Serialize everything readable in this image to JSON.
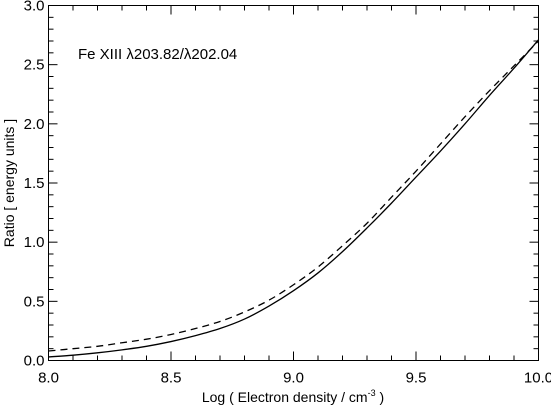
{
  "chart_data": {
    "type": "line",
    "title": "",
    "xlabel": "Log ( Electron density / cm",
    "xlabel_sup": "-3",
    "xlabel_suffix": " )",
    "ylabel": "Ratio [ energy units ]",
    "annotation": "Fe XIII λ203.82/λ202.04",
    "xlim": [
      8.0,
      10.0
    ],
    "ylim": [
      0.0,
      3.0
    ],
    "xticks": [
      "8.0",
      "8.5",
      "9.0",
      "9.5",
      "10.0"
    ],
    "yticks": [
      "0.0",
      "0.5",
      "1.0",
      "1.5",
      "2.0",
      "2.5",
      "3.0"
    ],
    "grid": false,
    "legend": "none",
    "series": [
      {
        "style": "solid",
        "color": "#000000",
        "x": [
          8.0,
          8.1,
          8.2,
          8.3,
          8.4,
          8.5,
          8.6,
          8.7,
          8.8,
          8.9,
          9.0,
          9.1,
          9.2,
          9.3,
          9.4,
          9.5,
          9.6,
          9.7,
          9.8,
          9.9,
          10.0
        ],
        "y": [
          0.03,
          0.045,
          0.065,
          0.09,
          0.12,
          0.16,
          0.21,
          0.27,
          0.35,
          0.46,
          0.59,
          0.74,
          0.92,
          1.12,
          1.33,
          1.55,
          1.77,
          2.0,
          2.24,
          2.47,
          2.71
        ]
      },
      {
        "style": "dashed",
        "color": "#000000",
        "x": [
          8.0,
          8.1,
          8.2,
          8.3,
          8.4,
          8.5,
          8.6,
          8.7,
          8.8,
          8.9,
          9.0,
          9.1,
          9.2,
          9.3,
          9.4,
          9.5,
          9.6,
          9.7,
          9.8,
          9.9,
          10.0
        ],
        "y": [
          0.08,
          0.1,
          0.12,
          0.15,
          0.18,
          0.22,
          0.27,
          0.33,
          0.41,
          0.51,
          0.64,
          0.79,
          0.97,
          1.16,
          1.38,
          1.6,
          1.83,
          2.06,
          2.28,
          2.49,
          2.7
        ]
      }
    ]
  }
}
